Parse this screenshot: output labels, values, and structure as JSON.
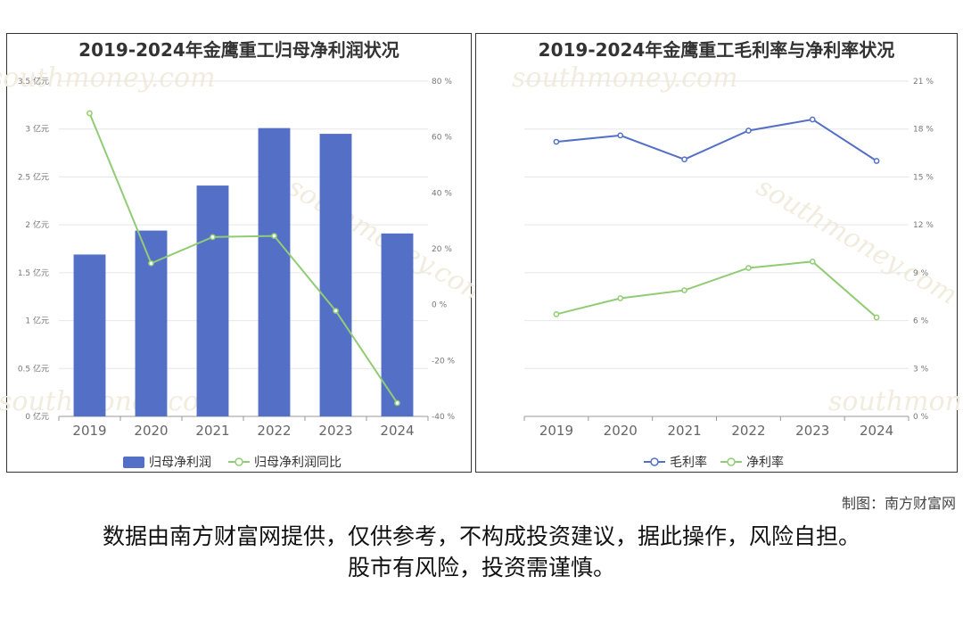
{
  "chart_data": [
    {
      "type": "bar",
      "title": "2019-2024年金鹰重工归母净利润状况",
      "categories": [
        "2019",
        "2020",
        "2021",
        "2022",
        "2023",
        "2024"
      ],
      "series": [
        {
          "name": "归母净利润",
          "type": "bar",
          "axis": "left",
          "color": "#5470c6",
          "values": [
            1.69,
            1.94,
            2.41,
            3.01,
            2.95,
            1.91
          ]
        },
        {
          "name": "归母净利润同比",
          "type": "line",
          "axis": "right",
          "color": "#91cc75",
          "values": [
            68.5,
            14.8,
            24.2,
            24.6,
            -2.2,
            -35.2
          ]
        }
      ],
      "y_left": {
        "min": 0,
        "max": 3.5,
        "ticks": [
          "0 亿元",
          "0.5 亿元",
          "1 亿元",
          "1.5 亿元",
          "2 亿元",
          "2.5 亿元",
          "3 亿元",
          "3.5 亿元"
        ]
      },
      "y_right": {
        "min": -40,
        "max": 80,
        "ticks": [
          "-40 %",
          "-20 %",
          "0 %",
          "20 %",
          "40 %",
          "60 %",
          "80 %"
        ]
      },
      "legend_position": "bottom",
      "grid": true
    },
    {
      "type": "line",
      "title": "2019-2024年金鹰重工毛利率与净利率状况",
      "categories": [
        "2019",
        "2020",
        "2021",
        "2022",
        "2023",
        "2024"
      ],
      "series": [
        {
          "name": "毛利率",
          "color": "#5470c6",
          "values": [
            17.2,
            17.6,
            16.1,
            17.9,
            18.6,
            16.0
          ]
        },
        {
          "name": "净利率",
          "color": "#91cc75",
          "values": [
            6.4,
            7.4,
            7.9,
            9.3,
            9.7,
            6.2
          ]
        }
      ],
      "y_right": {
        "min": 0,
        "max": 21,
        "ticks": [
          "0 %",
          "3 %",
          "6 %",
          "9 %",
          "12 %",
          "15 %",
          "18 %",
          "21 %"
        ]
      },
      "legend_position": "bottom",
      "grid": true
    }
  ],
  "footer": {
    "credit": "制图：南方财富网",
    "disclaimer_line1": "数据由南方财富网提供，仅供参考，不构成投资建议，据此操作，风险自担。",
    "disclaimer_line2": "股市有风险，投资需谨慎。"
  }
}
